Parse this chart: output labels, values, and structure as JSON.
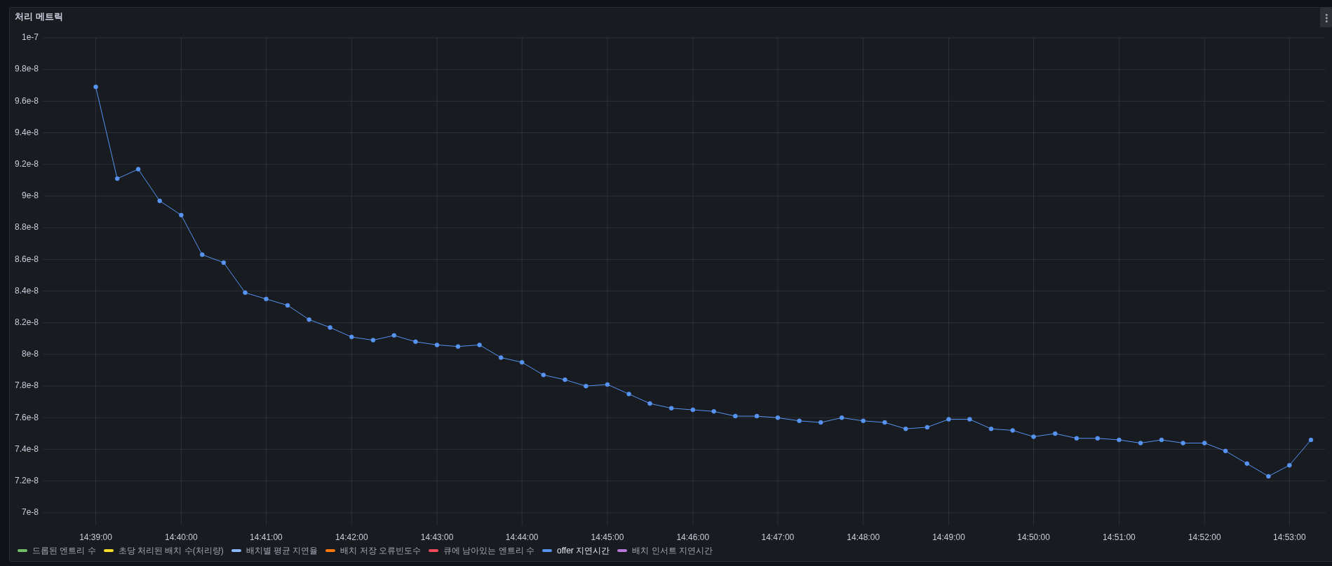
{
  "chart_data": {
    "type": "line",
    "title": "처리 메트릭",
    "x": [
      14.65,
      14.6542,
      14.6583,
      14.6625,
      14.6667,
      14.6708,
      14.675,
      14.6792,
      14.6833,
      14.6875,
      14.6917,
      14.6958,
      14.7,
      14.7042,
      14.7083,
      14.7125,
      14.7167,
      14.7208,
      14.725,
      14.7292,
      14.7333,
      14.7375,
      14.7417,
      14.7458,
      14.75,
      14.7542,
      14.7583,
      14.7625,
      14.7667,
      14.7708,
      14.775,
      14.7792,
      14.7833,
      14.7875,
      14.7917,
      14.7958,
      14.8,
      14.8042,
      14.8083,
      14.8125,
      14.8167,
      14.8208,
      14.825,
      14.8292,
      14.8333,
      14.8375,
      14.8417,
      14.8458,
      14.85,
      14.8542,
      14.8583,
      14.8625,
      14.8667,
      14.8708,
      14.875,
      14.8792,
      14.8833,
      14.8875
    ],
    "series": [
      {
        "name": "드롭된 엔트리 수",
        "color": "#73bf69",
        "values": [
          null,
          null,
          null,
          null,
          null,
          null,
          null,
          null,
          null,
          null,
          null,
          null,
          null,
          null,
          null,
          null,
          null,
          null,
          null,
          null,
          null,
          null,
          null,
          null,
          null,
          null,
          null,
          null,
          null,
          null,
          null,
          null,
          null,
          null,
          null,
          null,
          null,
          null,
          null,
          null,
          null,
          null,
          null,
          null,
          null,
          null,
          null,
          null,
          null,
          null,
          null,
          null,
          null,
          null,
          null,
          null,
          null,
          null
        ]
      },
      {
        "name": "초당 처리된 배치 수(처리량)",
        "color": "#fade2a",
        "values": [
          null,
          null,
          null,
          null,
          null,
          null,
          null,
          null,
          null,
          null,
          null,
          null,
          null,
          null,
          null,
          null,
          null,
          null,
          null,
          null,
          null,
          null,
          null,
          null,
          null,
          null,
          null,
          null,
          null,
          null,
          null,
          null,
          null,
          null,
          null,
          null,
          null,
          null,
          null,
          null,
          null,
          null,
          null,
          null,
          null,
          null,
          null,
          null,
          null,
          null,
          null,
          null,
          null,
          null,
          null,
          null,
          null,
          null
        ]
      },
      {
        "name": "배치별 평균 지연율",
        "color": "#8ab8ff",
        "values": [
          null,
          null,
          null,
          null,
          null,
          null,
          null,
          null,
          null,
          null,
          null,
          null,
          null,
          null,
          null,
          null,
          null,
          null,
          null,
          null,
          null,
          null,
          null,
          null,
          null,
          null,
          null,
          null,
          null,
          null,
          null,
          null,
          null,
          null,
          null,
          null,
          null,
          null,
          null,
          null,
          null,
          null,
          null,
          null,
          null,
          null,
          null,
          null,
          null,
          null,
          null,
          null,
          null,
          null,
          null,
          null,
          null,
          null
        ]
      },
      {
        "name": "배치 저장 오류빈도수",
        "color": "#ff780a",
        "values": [
          null,
          null,
          null,
          null,
          null,
          null,
          null,
          null,
          null,
          null,
          null,
          null,
          null,
          null,
          null,
          null,
          null,
          null,
          null,
          null,
          null,
          null,
          null,
          null,
          null,
          null,
          null,
          null,
          null,
          null,
          null,
          null,
          null,
          null,
          null,
          null,
          null,
          null,
          null,
          null,
          null,
          null,
          null,
          null,
          null,
          null,
          null,
          null,
          null,
          null,
          null,
          null,
          null,
          null,
          null,
          null,
          null,
          null
        ]
      },
      {
        "name": "큐에 남아있는 엔트리 수",
        "color": "#f2495c",
        "values": [
          null,
          null,
          null,
          null,
          null,
          null,
          null,
          null,
          null,
          null,
          null,
          null,
          null,
          null,
          null,
          null,
          null,
          null,
          null,
          null,
          null,
          null,
          null,
          null,
          null,
          null,
          null,
          null,
          null,
          null,
          null,
          null,
          null,
          null,
          null,
          null,
          null,
          null,
          null,
          null,
          null,
          null,
          null,
          null,
          null,
          null,
          null,
          null,
          null,
          null,
          null,
          null,
          null,
          null,
          null,
          null,
          null,
          null
        ]
      },
      {
        "name": "offer 지연시간",
        "color": "#5794f2",
        "values": [
          9.69e-08,
          9.11e-08,
          9.17e-08,
          8.97e-08,
          8.88e-08,
          8.63e-08,
          8.58e-08,
          8.39e-08,
          8.35e-08,
          8.31e-08,
          8.22e-08,
          8.17e-08,
          8.11e-08,
          8.09e-08,
          8.12e-08,
          8.08e-08,
          8.06e-08,
          8.05e-08,
          8.06e-08,
          7.98e-08,
          7.95e-08,
          7.87e-08,
          7.84e-08,
          7.8e-08,
          7.81e-08,
          7.75e-08,
          7.69e-08,
          7.66e-08,
          7.65e-08,
          7.64e-08,
          7.61e-08,
          7.61e-08,
          7.6e-08,
          7.58e-08,
          7.57e-08,
          7.6e-08,
          7.58e-08,
          7.57e-08,
          7.53e-08,
          7.54e-08,
          7.59e-08,
          7.59e-08,
          7.53e-08,
          7.52e-08,
          7.48e-08,
          7.5e-08,
          7.47e-08,
          7.47e-08,
          7.46e-08,
          7.44e-08,
          7.46e-08,
          7.44e-08,
          7.44e-08,
          7.39e-08,
          7.31e-08,
          7.23e-08,
          7.3e-08,
          7.46e-08
        ]
      },
      {
        "name": "배치 인서트 지연시간",
        "color": "#b877d9",
        "values": [
          null,
          null,
          null,
          null,
          null,
          null,
          null,
          null,
          null,
          null,
          null,
          null,
          null,
          null,
          null,
          null,
          null,
          null,
          null,
          null,
          null,
          null,
          null,
          null,
          null,
          null,
          null,
          null,
          null,
          null,
          null,
          null,
          null,
          null,
          null,
          null,
          null,
          null,
          null,
          null,
          null,
          null,
          null,
          null,
          null,
          null,
          null,
          null,
          null,
          null,
          null,
          null,
          null,
          null,
          null,
          null,
          null,
          null
        ]
      }
    ],
    "xlim": [
      14.6397,
      14.8903
    ],
    "xticks": [
      {
        "value": 14.65,
        "label": "14:39:00"
      },
      {
        "value": 14.6667,
        "label": "14:40:00"
      },
      {
        "value": 14.6833,
        "label": "14:41:00"
      },
      {
        "value": 14.7,
        "label": "14:42:00"
      },
      {
        "value": 14.7167,
        "label": "14:43:00"
      },
      {
        "value": 14.7333,
        "label": "14:44:00"
      },
      {
        "value": 14.75,
        "label": "14:45:00"
      },
      {
        "value": 14.7667,
        "label": "14:46:00"
      },
      {
        "value": 14.7833,
        "label": "14:47:00"
      },
      {
        "value": 14.8,
        "label": "14:48:00"
      },
      {
        "value": 14.8167,
        "label": "14:49:00"
      },
      {
        "value": 14.8333,
        "label": "14:50:00"
      },
      {
        "value": 14.85,
        "label": "14:51:00"
      },
      {
        "value": 14.8667,
        "label": "14:52:00"
      },
      {
        "value": 14.8833,
        "label": "14:53:00"
      }
    ],
    "ylim": [
      6.92e-08,
      1e-07
    ],
    "yticks": [
      {
        "value": 7e-08,
        "label": "7e-8"
      },
      {
        "value": 7.2e-08,
        "label": "7.2e-8"
      },
      {
        "value": 7.4e-08,
        "label": "7.4e-8"
      },
      {
        "value": 7.6e-08,
        "label": "7.6e-8"
      },
      {
        "value": 7.8e-08,
        "label": "7.8e-8"
      },
      {
        "value": 8e-08,
        "label": "8e-8"
      },
      {
        "value": 8.2e-08,
        "label": "8.2e-8"
      },
      {
        "value": 8.4e-08,
        "label": "8.4e-8"
      },
      {
        "value": 8.6e-08,
        "label": "8.6e-8"
      },
      {
        "value": 8.8e-08,
        "label": "8.8e-8"
      },
      {
        "value": 9e-08,
        "label": "9e-8"
      },
      {
        "value": 9.2e-08,
        "label": "9.2e-8"
      },
      {
        "value": 9.4e-08,
        "label": "9.4e-8"
      },
      {
        "value": 9.6e-08,
        "label": "9.6e-8"
      },
      {
        "value": 9.8e-08,
        "label": "9.8e-8"
      },
      {
        "value": 1e-07,
        "label": "1e-7"
      }
    ],
    "grid": true,
    "legend": "bottom",
    "marker": "circle",
    "line_style": "solid"
  }
}
